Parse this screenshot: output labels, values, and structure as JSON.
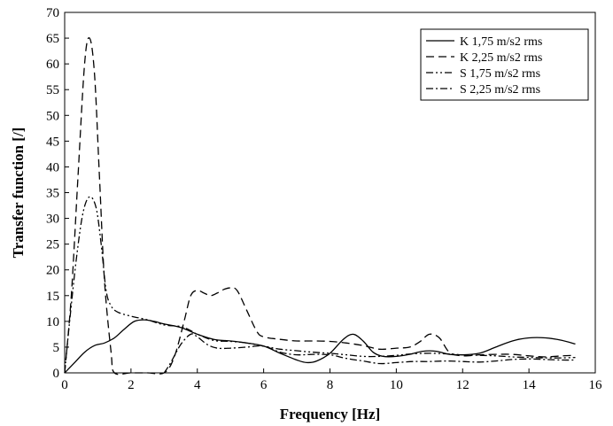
{
  "chart_data": {
    "type": "line",
    "xlabel": "Frequency [Hz]",
    "ylabel": "Transfer function [/]",
    "xlim": [
      0,
      16
    ],
    "ylim": [
      0,
      70
    ],
    "xticks": [
      0,
      2,
      4,
      6,
      8,
      10,
      12,
      14,
      16
    ],
    "yticks": [
      0,
      5,
      10,
      15,
      20,
      25,
      30,
      35,
      40,
      45,
      50,
      55,
      60,
      65,
      70
    ],
    "grid": false,
    "legend": "top-right",
    "series": [
      {
        "name": "K 1,75 m/s2 rms",
        "dash": "solid",
        "points": [
          [
            0,
            0
          ],
          [
            0.3,
            2
          ],
          [
            0.6,
            4
          ],
          [
            0.9,
            5.3
          ],
          [
            1.2,
            5.8
          ],
          [
            1.5,
            6.8
          ],
          [
            1.8,
            8.5
          ],
          [
            2.1,
            10
          ],
          [
            2.4,
            10.3
          ],
          [
            2.7,
            10
          ],
          [
            3.0,
            9.5
          ],
          [
            3.5,
            8.8
          ],
          [
            4.0,
            7.5
          ],
          [
            4.5,
            6.5
          ],
          [
            5.0,
            6.2
          ],
          [
            5.5,
            5.8
          ],
          [
            6.0,
            5.2
          ],
          [
            6.5,
            3.8
          ],
          [
            7.0,
            2.5
          ],
          [
            7.3,
            2
          ],
          [
            7.6,
            2.3
          ],
          [
            8.0,
            3.8
          ],
          [
            8.4,
            6.5
          ],
          [
            8.7,
            7.5
          ],
          [
            9.0,
            6.2
          ],
          [
            9.3,
            4
          ],
          [
            9.6,
            3.2
          ],
          [
            10.0,
            3.2
          ],
          [
            10.4,
            3.6
          ],
          [
            10.8,
            4.2
          ],
          [
            11.2,
            4.2
          ],
          [
            11.6,
            3.6
          ],
          [
            12.0,
            3.5
          ],
          [
            12.5,
            3.8
          ],
          [
            13.0,
            5
          ],
          [
            13.5,
            6.2
          ],
          [
            14.0,
            6.8
          ],
          [
            14.5,
            6.8
          ],
          [
            15.0,
            6.3
          ],
          [
            15.4,
            5.6
          ]
        ]
      },
      {
        "name": "K 2,25 m/s2 rms",
        "dash": "dashed",
        "points": [
          [
            0,
            0
          ],
          [
            0.2,
            15
          ],
          [
            0.4,
            38
          ],
          [
            0.6,
            60
          ],
          [
            0.75,
            65
          ],
          [
            0.9,
            58
          ],
          [
            1.05,
            38
          ],
          [
            1.2,
            18
          ],
          [
            1.4,
            4
          ],
          [
            1.5,
            0
          ],
          [
            2.0,
            0
          ],
          [
            2.5,
            0
          ],
          [
            3.0,
            0
          ],
          [
            3.3,
            3
          ],
          [
            3.6,
            10
          ],
          [
            3.8,
            15
          ],
          [
            4.0,
            16
          ],
          [
            4.2,
            15.5
          ],
          [
            4.4,
            15
          ],
          [
            4.6,
            15.5
          ],
          [
            4.8,
            16.2
          ],
          [
            5.0,
            16.5
          ],
          [
            5.2,
            16
          ],
          [
            5.5,
            12
          ],
          [
            5.8,
            8
          ],
          [
            6.0,
            7
          ],
          [
            6.5,
            6.5
          ],
          [
            7.0,
            6.2
          ],
          [
            7.5,
            6.2
          ],
          [
            8.0,
            6.1
          ],
          [
            8.5,
            5.8
          ],
          [
            9.0,
            5.3
          ],
          [
            9.5,
            4.6
          ],
          [
            10.0,
            4.8
          ],
          [
            10.4,
            5
          ],
          [
            10.7,
            6
          ],
          [
            11.0,
            7.5
          ],
          [
            11.3,
            6.8
          ],
          [
            11.6,
            4
          ],
          [
            12.0,
            3.3
          ],
          [
            12.5,
            3.5
          ],
          [
            13.0,
            3.6
          ],
          [
            13.5,
            3.6
          ],
          [
            14.0,
            3.3
          ],
          [
            14.5,
            3.1
          ],
          [
            15.0,
            3.3
          ],
          [
            15.4,
            3.4
          ]
        ]
      },
      {
        "name": "S 1,75 m/s2 rms",
        "dash": "dashdotdot",
        "points": [
          [
            0,
            0
          ],
          [
            0.15,
            10
          ],
          [
            0.35,
            22
          ],
          [
            0.55,
            31
          ],
          [
            0.75,
            34.2
          ],
          [
            0.95,
            32
          ],
          [
            1.1,
            25
          ],
          [
            1.25,
            16
          ],
          [
            1.4,
            13
          ],
          [
            1.6,
            11.8
          ],
          [
            2.0,
            11
          ],
          [
            2.5,
            10.3
          ],
          [
            3.0,
            9.3
          ],
          [
            3.5,
            9
          ],
          [
            3.8,
            8.2
          ],
          [
            4.0,
            7.5
          ],
          [
            4.5,
            6.3
          ],
          [
            5.0,
            6.1
          ],
          [
            5.5,
            5.8
          ],
          [
            6.0,
            5.2
          ],
          [
            6.5,
            4.6
          ],
          [
            7.0,
            4.3
          ],
          [
            7.5,
            4
          ],
          [
            8.0,
            3.8
          ],
          [
            8.5,
            3.5
          ],
          [
            9.0,
            3.2
          ],
          [
            9.5,
            3.2
          ],
          [
            10.0,
            3.4
          ],
          [
            10.5,
            3.7
          ],
          [
            11.0,
            3.8
          ],
          [
            11.5,
            3.7
          ],
          [
            12.0,
            3.5
          ],
          [
            12.5,
            3.4
          ],
          [
            13.0,
            3.3
          ],
          [
            13.5,
            3.1
          ],
          [
            14.0,
            3
          ],
          [
            14.5,
            2.9
          ],
          [
            15.0,
            2.9
          ],
          [
            15.4,
            3
          ]
        ]
      },
      {
        "name": "S 2,25 m/s2 rms",
        "dash": "dashdot",
        "points": [
          [
            3.0,
            0
          ],
          [
            3.2,
            2
          ],
          [
            3.5,
            5.5
          ],
          [
            3.8,
            7.5
          ],
          [
            4.0,
            7
          ],
          [
            4.3,
            5.5
          ],
          [
            4.6,
            4.8
          ],
          [
            5.0,
            4.8
          ],
          [
            5.5,
            5
          ],
          [
            6.0,
            5.2
          ],
          [
            6.5,
            4
          ],
          [
            7.0,
            3.5
          ],
          [
            7.5,
            3.6
          ],
          [
            8.0,
            3.5
          ],
          [
            8.5,
            2.8
          ],
          [
            9.0,
            2.3
          ],
          [
            9.5,
            1.8
          ],
          [
            10.0,
            2
          ],
          [
            10.5,
            2.2
          ],
          [
            11.0,
            2.2
          ],
          [
            11.5,
            2.3
          ],
          [
            12.0,
            2.2
          ],
          [
            12.5,
            2.1
          ],
          [
            13.0,
            2.3
          ],
          [
            13.5,
            2.6
          ],
          [
            14.0,
            2.7
          ],
          [
            14.5,
            2.6
          ],
          [
            15.0,
            2.5
          ],
          [
            15.4,
            2.5
          ]
        ]
      }
    ]
  }
}
